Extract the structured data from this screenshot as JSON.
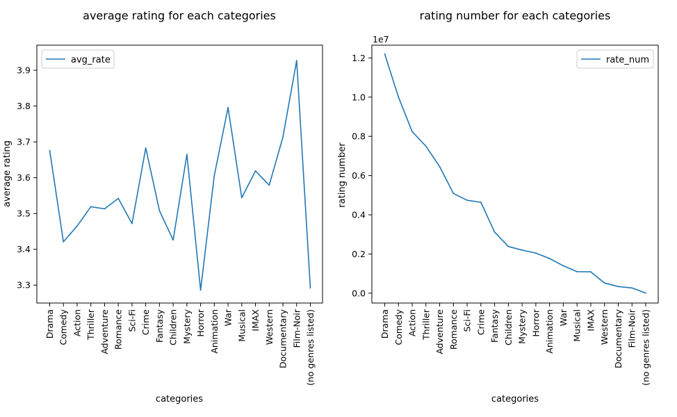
{
  "colors": {
    "series": "#1f77b4",
    "frame": "#000000"
  },
  "chart_data": [
    {
      "type": "line",
      "title": "average rating for each categories",
      "xlabel": "categories",
      "ylabel": "average rating",
      "ylim": [
        3.25,
        3.97
      ],
      "yticks": [
        3.3,
        3.4,
        3.5,
        3.6,
        3.7,
        3.8,
        3.9
      ],
      "ytick_labels": [
        "3.3",
        "3.4",
        "3.5",
        "3.6",
        "3.7",
        "3.8",
        "3.9"
      ],
      "legend": "top-left",
      "grid": false,
      "categories": [
        "Drama",
        "Comedy",
        "Action",
        "Thriller",
        "Adventure",
        "Romance",
        "Sci-Fi",
        "Crime",
        "Fantasy",
        "Children",
        "Mystery",
        "Horror",
        "Animation",
        "War",
        "Musical",
        "IMAX",
        "Western",
        "Documentary",
        "Film-Noir",
        "(no genres listed)"
      ],
      "series": [
        {
          "name": "avg_rate",
          "values": [
            3.676,
            3.421,
            3.465,
            3.519,
            3.513,
            3.542,
            3.472,
            3.683,
            3.508,
            3.426,
            3.665,
            3.286,
            3.606,
            3.796,
            3.544,
            3.619,
            3.579,
            3.713,
            3.927,
            3.292
          ]
        }
      ]
    },
    {
      "type": "line",
      "title": "rating number for each categories",
      "xlabel": "categories",
      "ylabel": "rating number",
      "ylim": [
        -0.05,
        1.265
      ],
      "yticks": [
        0.0,
        0.2,
        0.4,
        0.6,
        0.8,
        1.0,
        1.2
      ],
      "ytick_labels": [
        "0.0",
        "0.2",
        "0.4",
        "0.6",
        "0.8",
        "1.0",
        "1.2"
      ],
      "scale_label": "1e7",
      "legend": "top-right",
      "grid": false,
      "categories": [
        "Drama",
        "Comedy",
        "Action",
        "Thriller",
        "Adventure",
        "Romance",
        "Sci-Fi",
        "Crime",
        "Fantasy",
        "Children",
        "Mystery",
        "Horror",
        "Animation",
        "War",
        "Musical",
        "IMAX",
        "Western",
        "Documentary",
        "Film-Noir",
        "(no genres listed)"
      ],
      "series": [
        {
          "name": "rate_num",
          "values": [
            1.22,
            1.0,
            0.824,
            0.75,
            0.645,
            0.509,
            0.474,
            0.464,
            0.312,
            0.238,
            0.22,
            0.205,
            0.177,
            0.14,
            0.11,
            0.109,
            0.052,
            0.034,
            0.027,
            0.001
          ]
        }
      ]
    }
  ]
}
